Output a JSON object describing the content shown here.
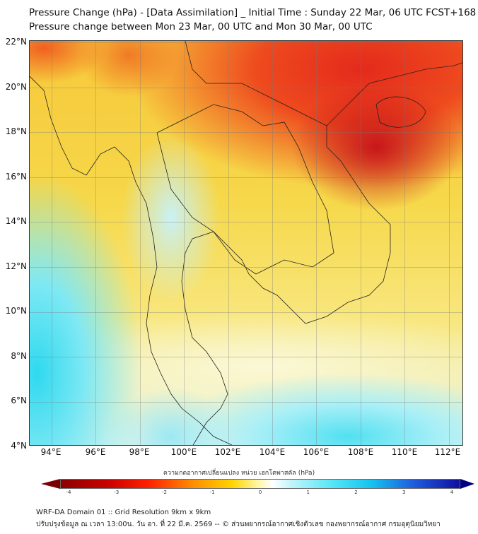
{
  "title_line1": "Pressure Change (hPa) - [Data Assimilation] _ Initial Time : Sunday 22 Mar, 06 UTC FCST+168",
  "title_line2": "Pressure change between Mon 23 Mar, 00 UTC and Mon 30 Mar, 00 UTC",
  "lat_labels": [
    "22°N",
    "20°N",
    "18°N",
    "16°N",
    "14°N",
    "12°N",
    "10°N",
    "8°N",
    "6°N",
    "4°N"
  ],
  "lon_labels": [
    "94°E",
    "96°E",
    "98°E",
    "100°E",
    "102°E",
    "104°E",
    "106°E",
    "108°E",
    "110°E",
    "112°E"
  ],
  "colorbar": {
    "label": "ความกดอากาศเปลี่ยนแปลง หน่วย เฮกโตพาสคัล (hPa)",
    "ticks": [
      "-4",
      "-3",
      "-2",
      "-1",
      "0",
      "1",
      "2",
      "3",
      "4"
    ],
    "range": [
      -4,
      4
    ]
  },
  "footer_line1": "WRF-DA Domain 01 :: Grid Resolution 9km x 9km",
  "footer_line2": "ปรับปรุงข้อมูล ณ เวลา 13:00น. วัน อา. ที่ 22 มี.ค. 2569 -- © ส่วนพยากรณ์อากาศเชิงตัวเลข กองพยากรณ์อากาศ กรมอุตุนิยมวิทยา"
}
